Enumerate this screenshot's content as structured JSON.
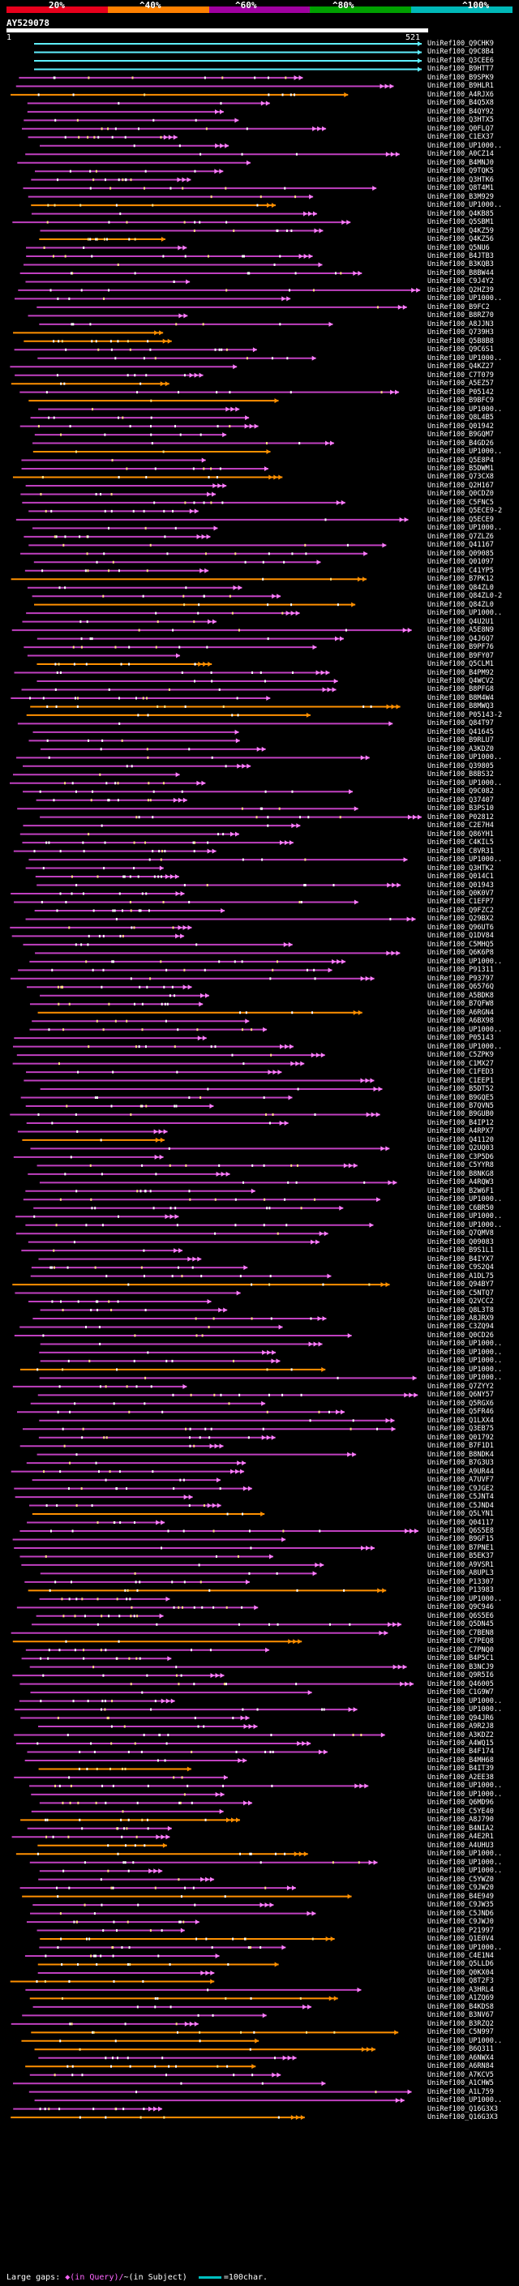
{
  "legend": {
    "segments": [
      "#e8001c",
      "#ff8000",
      "#a000a0",
      "#00a000",
      "#00b8b8"
    ],
    "labels": [
      "20%",
      "^40%",
      "^60%",
      "^80%",
      "^100%"
    ]
  },
  "query": {
    "title": "AY529078",
    "start": "1",
    "end": "521"
  },
  "colors": {
    "cyan": "#5ff0ff",
    "magenta": "#c040c0",
    "orange": "#ff9000",
    "pink": "#ff80ff",
    "gap": "#ffe080"
  },
  "hits": [
    "UniRef100_Q9CHK9",
    "UniRef100_Q9C8B4",
    "UniRef100_Q3CEE6",
    "UniRef100_B9HTT7",
    "UniRef100_B9SPK9",
    "UniRef100_B9HLR1",
    "UniRef100_A4RJX6",
    "UniRef100_B4Q5X8",
    "UniRef100_B4QY92",
    "UniRef100_Q3HTX5",
    "UniRef100_Q0FLQ7",
    "UniRef100_C1EX37",
    "UniRef100_UP1000..",
    "UniRef100_A0CZ14",
    "UniRef100_B4MNJ0",
    "UniRef100_Q9TQK5",
    "UniRef100_Q3HTK6",
    "UniRef100_Q8T4M1",
    "UniRef100_B3M929",
    "UniRef100_UP1000..",
    "UniRef100_Q4KB85",
    "UniRef100_Q5SBM1",
    "UniRef100_Q4KZ59",
    "UniRef100_Q4KZ56",
    "UniRef100_Q5NU6",
    "UniRef100_B4JTB3",
    "UniRef100_B3KQB3",
    "UniRef100_B8BW44",
    "UniRef100_C9J4Y2",
    "UniRef100_Q2HZ39",
    "UniRef100_UP1000..",
    "UniRef100_B9FC2",
    "UniRef100_B8RZ70",
    "UniRef100_A8JJN3",
    "UniRef100_Q739H3",
    "UniRef100_Q5B8B8",
    "UniRef100_Q9C6S1",
    "UniRef100_UP1000..",
    "UniRef100_Q4KZ27",
    "UniRef100_C7T079",
    "UniRef100_A5EZ57",
    "UniRef100_P05142",
    "UniRef100_B9BFC9",
    "UniRef100_UP1000..",
    "UniRef100_Q8L4B5",
    "UniRef100_Q01942",
    "UniRef100_B9GQM7",
    "UniRef100_B4GD26",
    "UniRef100_UP1000..",
    "UniRef100_Q5E8P4",
    "UniRef100_B5DWM1",
    "UniRef100_Q73CX8",
    "UniRef100_Q2H167",
    "UniRef100_Q0CDZ0",
    "UniRef100_C5FNC5",
    "UniRef100_Q5ECE9-2",
    "UniRef100_Q5ECE9",
    "UniRef100_UP1000..",
    "UniRef100_Q7ZLZ6",
    "UniRef100_Q41167",
    "UniRef100_Q09085",
    "UniRef100_Q01097",
    "UniRef100_C41YP5",
    "UniRef100_B7PK12",
    "UniRef100_Q84ZL0",
    "UniRef100_Q84ZL0-2",
    "UniRef100_Q84ZL0",
    "UniRef100_UP1000..",
    "UniRef100_Q4U2U1",
    "UniRef100_A5E8N9",
    "UniRef100_Q4J6Q7",
    "UniRef100_B9PF76",
    "UniRef100_B9FY07",
    "UniRef100_Q5CLM1",
    "UniRef100_B4PM92",
    "UniRef100_Q4WCV2",
    "UniRef100_B8PFG8",
    "UniRef100_B8M4W4",
    "UniRef100_B8MWQ3",
    "UniRef100_P05143-2",
    "UniRef100_Q84T97",
    "UniRef100_Q41645",
    "UniRef100_B9RLU7",
    "UniRef100_A3KDZ0",
    "UniRef100_UP1000..",
    "UniRef100_Q39805",
    "UniRef100_B8BS32",
    "UniRef100_UP1000..",
    "UniRef100_Q9C082",
    "UniRef100_Q37407",
    "UniRef100_B3PS10",
    "UniRef100_P02812",
    "UniRef100_C2E7H4",
    "UniRef100_Q86YH1",
    "UniRef100_C4KIL5",
    "UniRef100_C8VR31",
    "UniRef100_UP1000..",
    "UniRef100_Q3HTK2",
    "UniRef100_Q014C1",
    "UniRef100_Q01943",
    "UniRef100_Q0K0V7",
    "UniRef100_C1EFP7",
    "UniRef100_Q9FZC2",
    "UniRef100_Q29BX2",
    "UniRef100_Q96UT6",
    "UniRef100_Q1DV84",
    "UniRef100_C5MHQ5",
    "UniRef100_Q6K6P8",
    "UniRef100_UP1000..",
    "UniRef100_P91311",
    "UniRef100_P93797",
    "UniRef100_Q6576Q",
    "UniRef100_A5BDK8",
    "UniRef100_B7QFW8",
    "UniRef100_A6RGN4",
    "UniRef100_A6BX98",
    "UniRef100_UP1000..",
    "UniRef100_P05143",
    "UniRef100_UP1000..",
    "UniRef100_C5ZPK9",
    "UniRef100_C1MX27",
    "UniRef100_C1FED3",
    "UniRef100_C1EEP1",
    "UniRef100_B5DT52",
    "UniRef100_B9GQE5",
    "UniRef100_B7QVN5",
    "UniRef100_B9GUB0",
    "UniRef100_B4IP12",
    "UniRef100_A4RPX7",
    "UniRef100_Q41120",
    "UniRef100_Q2UQ03",
    "UniRef100_C3P5D6",
    "UniRef100_C5YYR8",
    "UniRef100_B8NKG8",
    "UniRef100_A4RQW3",
    "UniRef100_B2W6F1",
    "UniRef100_UP1000..",
    "UniRef100_C6BR50",
    "UniRef100_UP1000..",
    "UniRef100_UP1000..",
    "UniRef100_Q7QMV8",
    "UniRef100_Q09083",
    "UniRef100_B9S1L1",
    "UniRef100_B4IYX7",
    "UniRef100_C9S2Q4",
    "UniRef100_A1DL75",
    "UniRef100_Q94BY7",
    "UniRef100_C5NTQ7",
    "UniRef100_Q2VCC2",
    "UniRef100_Q8L3T8",
    "UniRef100_A8JRX9",
    "UniRef100_C3ZQ94",
    "UniRef100_Q0CD26",
    "UniRef100_UP1000..",
    "UniRef100_UP1000..",
    "UniRef100_UP1000..",
    "UniRef100_UP1000..",
    "UniRef100_UP1000..",
    "UniRef100_Q7ZYY2",
    "UniRef100_Q6NY57",
    "UniRef100_Q5RGX6",
    "UniRef100_Q5FR46",
    "UniRef100_Q1LXX4",
    "UniRef100_Q3EB75",
    "UniRef100_Q01792",
    "UniRef100_B7F1D1",
    "UniRef100_B8NDK4",
    "UniRef100_B7G3U3",
    "UniRef100_A9UR44",
    "UniRef100_A7UVF7",
    "UniRef100_C9JGE2",
    "UniRef100_C5JNT4",
    "UniRef100_C5JND4",
    "UniRef100_Q5LYN1",
    "UniRef100_Q04117",
    "UniRef100_Q6S5E8",
    "UniRef100_B9GF15",
    "UniRef100_B7PNE1",
    "UniRef100_B5EK37",
    "UniRef100_A9VSR1",
    "UniRef100_A8UPL3",
    "UniRef100_P13307",
    "UniRef100_P13983",
    "UniRef100_UP1000..",
    "UniRef100_Q9C946",
    "UniRef100_Q6S5E6",
    "UniRef100_Q5DN45",
    "UniRef100_C7BEN8",
    "UniRef100_C7PEQ8",
    "UniRef100_C7PNQ0",
    "UniRef100_B4P5C1",
    "UniRef100_B3NCJ9",
    "UniRef100_Q9R5I6",
    "UniRef100_Q46005",
    "UniRef100_C1G9W7",
    "UniRef100_UP1000..",
    "UniRef100_UP1000..",
    "UniRef100_Q94JR6",
    "UniRef100_A9R2J8",
    "UniRef100_A3KDZ2",
    "UniRef100_A4WQ15",
    "UniRef100_B4F174",
    "UniRef100_B4MH68",
    "UniRef100_B4IT39",
    "UniRef100_A2EE38",
    "UniRef100_UP1000..",
    "UniRef100_UP1000..",
    "UniRef100_Q6MD96",
    "UniRef100_C5YE40",
    "UniRef100_A8J790",
    "UniRef100_B4NIA2",
    "UniRef100_A4E2R1",
    "UniRef100_A4UHU3",
    "UniRef100_UP1000..",
    "UniRef100_UP1000..",
    "UniRef100_UP1000..",
    "UniRef100_C5YWZ0",
    "UniRef100_C9JW20",
    "UniRef100_B4E949",
    "UniRef100_C9JW35",
    "UniRef100_C5JND6",
    "UniRef100_C9JWJ0",
    "UniRef100_P21997",
    "UniRef100_Q1E0V4",
    "UniRef100_UP1000..",
    "UniRef100_C4E1N4",
    "UniRef100_Q5LLD6",
    "UniRef100_Q0KX04",
    "UniRef100_Q8T2F3",
    "UniRef100_A3HRL4",
    "UniRef100_A1ZQ69",
    "UniRef100_B4KDS8",
    "UniRef100_B3NV67",
    "UniRef100_B3RZQ2",
    "UniRef100_C5N997",
    "UniRef100_UP1000..",
    "UniRef100_B6Q311",
    "UniRef100_A6NWX4",
    "UniRef100_A6RN84",
    "UniRef100_A7KCV5",
    "UniRef100_A1CHW5",
    "UniRef100_A1L759",
    "UniRef100_UP1000..",
    "UniRef100_Q16G3X3",
    "UniRef100_Q16G3X3"
  ],
  "footer": {
    "large_gaps": "Large gaps:",
    "in_query": "◆(in Query)/",
    "in_subject": "~(in Subject)",
    "scale": "=100char."
  }
}
